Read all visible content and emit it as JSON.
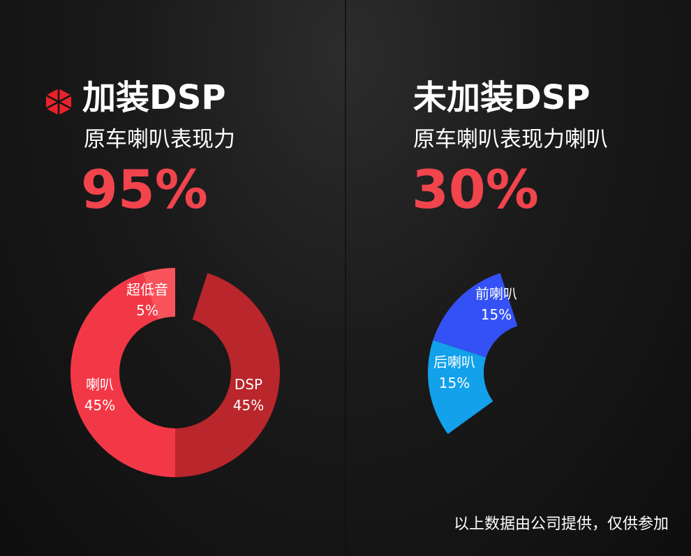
{
  "left": {
    "title": "加装DSP",
    "subtitle": "原车喇叭表现力",
    "percent": "95%",
    "marker_icon": "red-asterisk-icon"
  },
  "right": {
    "title": "未加装DSP",
    "subtitle": "原车喇叭表现力喇叭",
    "percent": "30%"
  },
  "footnote": "以上数据由公司提供，仅供参加",
  "chart_data": [
    {
      "type": "pie",
      "donut": true,
      "title": "",
      "segments": [
        {
          "name": "DSP",
          "value": 45,
          "label": "45%",
          "color": "#b9262b"
        },
        {
          "name": "喇叭",
          "value": 45,
          "label": "45%",
          "color": "#f23846"
        },
        {
          "name": "超低音",
          "value": 5,
          "label": "5%",
          "color": "#f8535b"
        }
      ]
    },
    {
      "type": "pie",
      "donut": true,
      "title": "",
      "segments": [
        {
          "name": "后喇叭",
          "value": 15,
          "label": "15%",
          "color": "#12a1ea"
        },
        {
          "name": "前喇叭",
          "value": 15,
          "label": "15%",
          "color": "#3351f5"
        }
      ]
    }
  ]
}
